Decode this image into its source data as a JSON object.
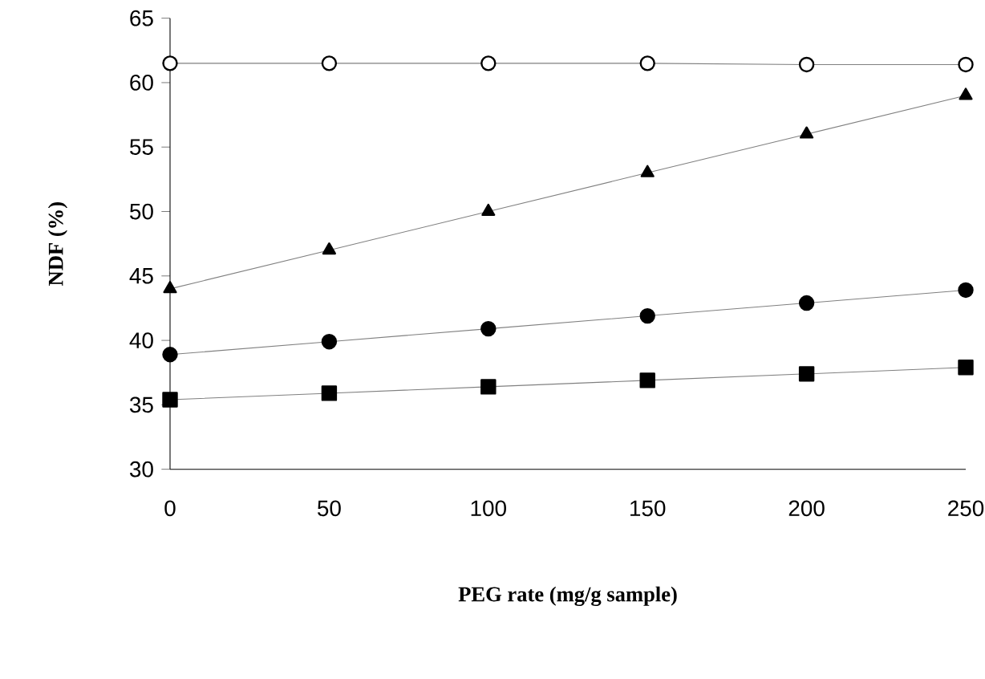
{
  "chart_data": {
    "type": "line",
    "xlabel": "**PEG rate (mg/g sample)**",
    "ylabel": "**NDF (%)**",
    "x": [
      0,
      50,
      100,
      150,
      200,
      250
    ],
    "series": [
      {
        "color": "#ffffff",
        "marker": "circle",
        "values": [
          61.5,
          61.5,
          61.5,
          61.5,
          61.4,
          61.4
        ]
      },
      {
        "color": "#000000",
        "marker": "triangle",
        "values": [
          44,
          47,
          50,
          53,
          56,
          59
        ]
      },
      {
        "color": "#000000",
        "marker": "circle",
        "values": [
          38.9,
          39.9,
          40.9,
          41.9,
          42.9,
          43.9
        ]
      },
      {
        "color": "#000000",
        "marker": "square",
        "values": [
          35.4,
          35.9,
          36.4,
          36.9,
          37.4,
          37.9
        ]
      }
    ],
    "xlim": [
      0,
      250
    ],
    "xticks": [
      0,
      50,
      100,
      150,
      200,
      250
    ],
    "ylim": [
      30,
      65
    ],
    "yticks": [
      30,
      35,
      40,
      45,
      50,
      55,
      60,
      65
    ],
    "grid": false,
    "line_style": "solid"
  }
}
